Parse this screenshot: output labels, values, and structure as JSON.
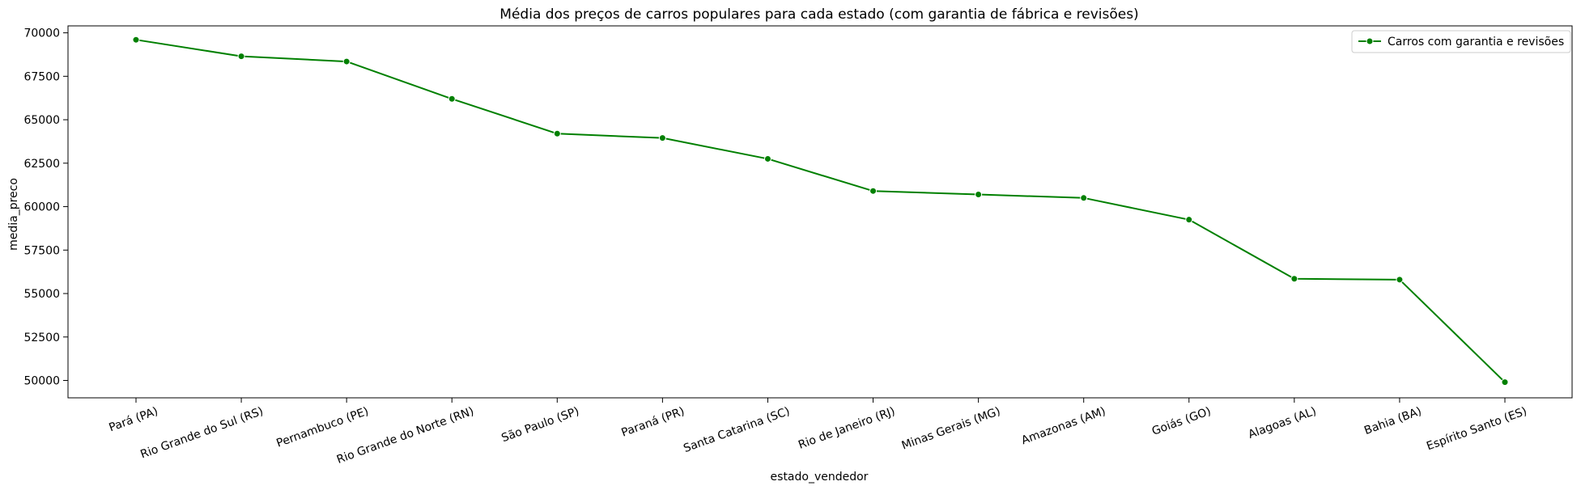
{
  "chart_data": {
    "type": "line",
    "title": "Média dos preços de carros populares para cada estado (com garantia de fábrica e revisões)",
    "xlabel": "estado_vendedor",
    "ylabel": "media_preco",
    "categories": [
      "Pará (PA)",
      "Rio Grande do Sul (RS)",
      "Pernambuco (PE)",
      "Rio Grande do Norte (RN)",
      "São Paulo (SP)",
      "Paraná (PR)",
      "Santa Catarina (SC)",
      "Rio de Janeiro (RJ)",
      "Minas Gerais (MG)",
      "Amazonas (AM)",
      "Goiás (GO)",
      "Alagoas (AL)",
      "Bahia (BA)",
      "Espírito Santo (ES)"
    ],
    "series": [
      {
        "name": "Carros com garantia e revisões",
        "color": "#008000",
        "marker": "circle",
        "values": [
          69600,
          68650,
          68350,
          66200,
          64200,
          63950,
          62750,
          60900,
          60700,
          60500,
          59250,
          55850,
          55800,
          49900
        ]
      }
    ],
    "ylim": [
      49000,
      70400
    ],
    "yticks": [
      50000,
      52500,
      55000,
      57500,
      60000,
      62500,
      65000,
      67500,
      70000
    ],
    "ytick_labels": [
      "50000",
      "52500",
      "55000",
      "57500",
      "60000",
      "62500",
      "65000",
      "67500",
      "70000"
    ],
    "xtick_rotation_deg": 20,
    "grid": false,
    "legend_position": "top-right"
  }
}
